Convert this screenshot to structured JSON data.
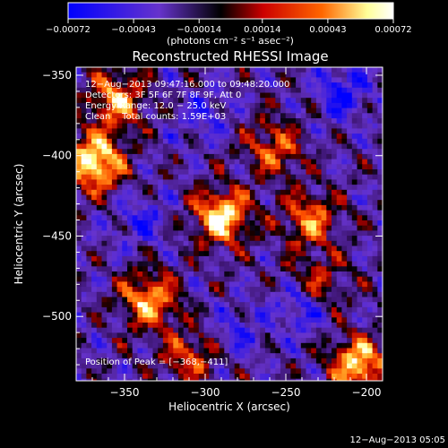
{
  "chart_data": {
    "type": "heatmap",
    "title": "Reconstructed RHESSI Image",
    "xlabel": "Heliocentric X (arcsec)",
    "ylabel": "Heliocentric Y (arcsec)",
    "xlim": [
      -380,
      -190
    ],
    "ylim": [
      -540,
      -345
    ],
    "xticks": [
      -350,
      -300,
      -250,
      -200
    ],
    "xtick_labels": [
      "−350",
      "−300",
      "−250",
      "−200"
    ],
    "yticks": [
      -350,
      -400,
      -450,
      -500
    ],
    "ytick_labels": [
      "−350",
      "−400",
      "−450",
      "−500"
    ],
    "colorbar": {
      "range": [
        -0.00072,
        0.00072
      ],
      "ticks": [
        -0.00072,
        -0.00043,
        -0.00014,
        0.00014,
        0.00043,
        0.00072
      ],
      "tick_labels": [
        "−0.00072",
        "−0.00043",
        "−0.00014",
        "0.00014",
        "0.00043",
        "0.00072"
      ],
      "unit_label": "(photons cm⁻² s⁻¹ asec⁻²)",
      "colormap": [
        "#0000ff",
        "#6633cc",
        "#000000",
        "#cc0000",
        "#ff6600",
        "#ffff99",
        "#ffffff"
      ]
    },
    "annotations": [
      "12−Aug−2013 09:47:16.000 to 09:48:20.000",
      "Detectors: 3F 5F 6F 7F 8F 9F, Att 0",
      "Energy Range: 12.0 − 25.0 keV",
      "Clean    Total counts: 1.59E+03"
    ],
    "peak_label": "Position of Peak = [−368,−411]",
    "peak": [
      -368,
      -411
    ],
    "sources": [
      {
        "x": -368,
        "y": -404,
        "strength": 1.0
      },
      {
        "x": -355,
        "y": -365,
        "strength": 0.7
      },
      {
        "x": -290,
        "y": -438,
        "strength": 0.9
      },
      {
        "x": -335,
        "y": -490,
        "strength": 0.75
      },
      {
        "x": -258,
        "y": -395,
        "strength": 0.55
      },
      {
        "x": -235,
        "y": -440,
        "strength": 0.6
      },
      {
        "x": -205,
        "y": -530,
        "strength": 0.85
      },
      {
        "x": -310,
        "y": -525,
        "strength": 0.5
      },
      {
        "x": -230,
        "y": -480,
        "strength": 0.45
      }
    ],
    "negative_regions": [
      {
        "x": -215,
        "y": -360,
        "strength": 0.9
      },
      {
        "x": -240,
        "y": -495,
        "strength": 0.85
      },
      {
        "x": -340,
        "y": -440,
        "strength": 0.6
      },
      {
        "x": -280,
        "y": -510,
        "strength": 0.55
      },
      {
        "x": -300,
        "y": -375,
        "strength": 0.5
      }
    ]
  },
  "footer": {
    "timestamp": "12−Aug−2013 05:05"
  }
}
